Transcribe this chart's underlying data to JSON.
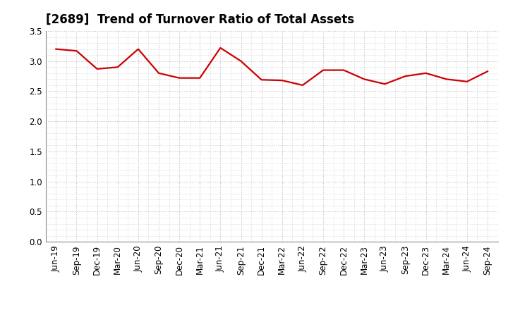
{
  "title": "[2689]  Trend of Turnover Ratio of Total Assets",
  "x_labels": [
    "Jun-19",
    "Sep-19",
    "Dec-19",
    "Mar-20",
    "Jun-20",
    "Sep-20",
    "Dec-20",
    "Mar-21",
    "Jun-21",
    "Sep-21",
    "Dec-21",
    "Mar-22",
    "Jun-22",
    "Sep-22",
    "Dec-22",
    "Mar-23",
    "Jun-23",
    "Sep-23",
    "Dec-23",
    "Mar-24",
    "Jun-24",
    "Sep-24"
  ],
  "y_values": [
    3.2,
    3.17,
    2.87,
    2.9,
    3.2,
    2.8,
    2.72,
    2.72,
    3.22,
    3.0,
    2.69,
    2.68,
    2.6,
    2.85,
    2.85,
    2.7,
    2.62,
    2.75,
    2.8,
    2.7,
    2.66,
    2.83
  ],
  "line_color": "#cc0000",
  "line_width": 1.6,
  "ylim": [
    0.0,
    3.5
  ],
  "yticks": [
    0.0,
    0.5,
    1.0,
    1.5,
    2.0,
    2.5,
    3.0,
    3.5
  ],
  "background_color": "#ffffff",
  "grid_color": "#bbbbbb",
  "title_fontsize": 12,
  "tick_fontsize": 8.5
}
